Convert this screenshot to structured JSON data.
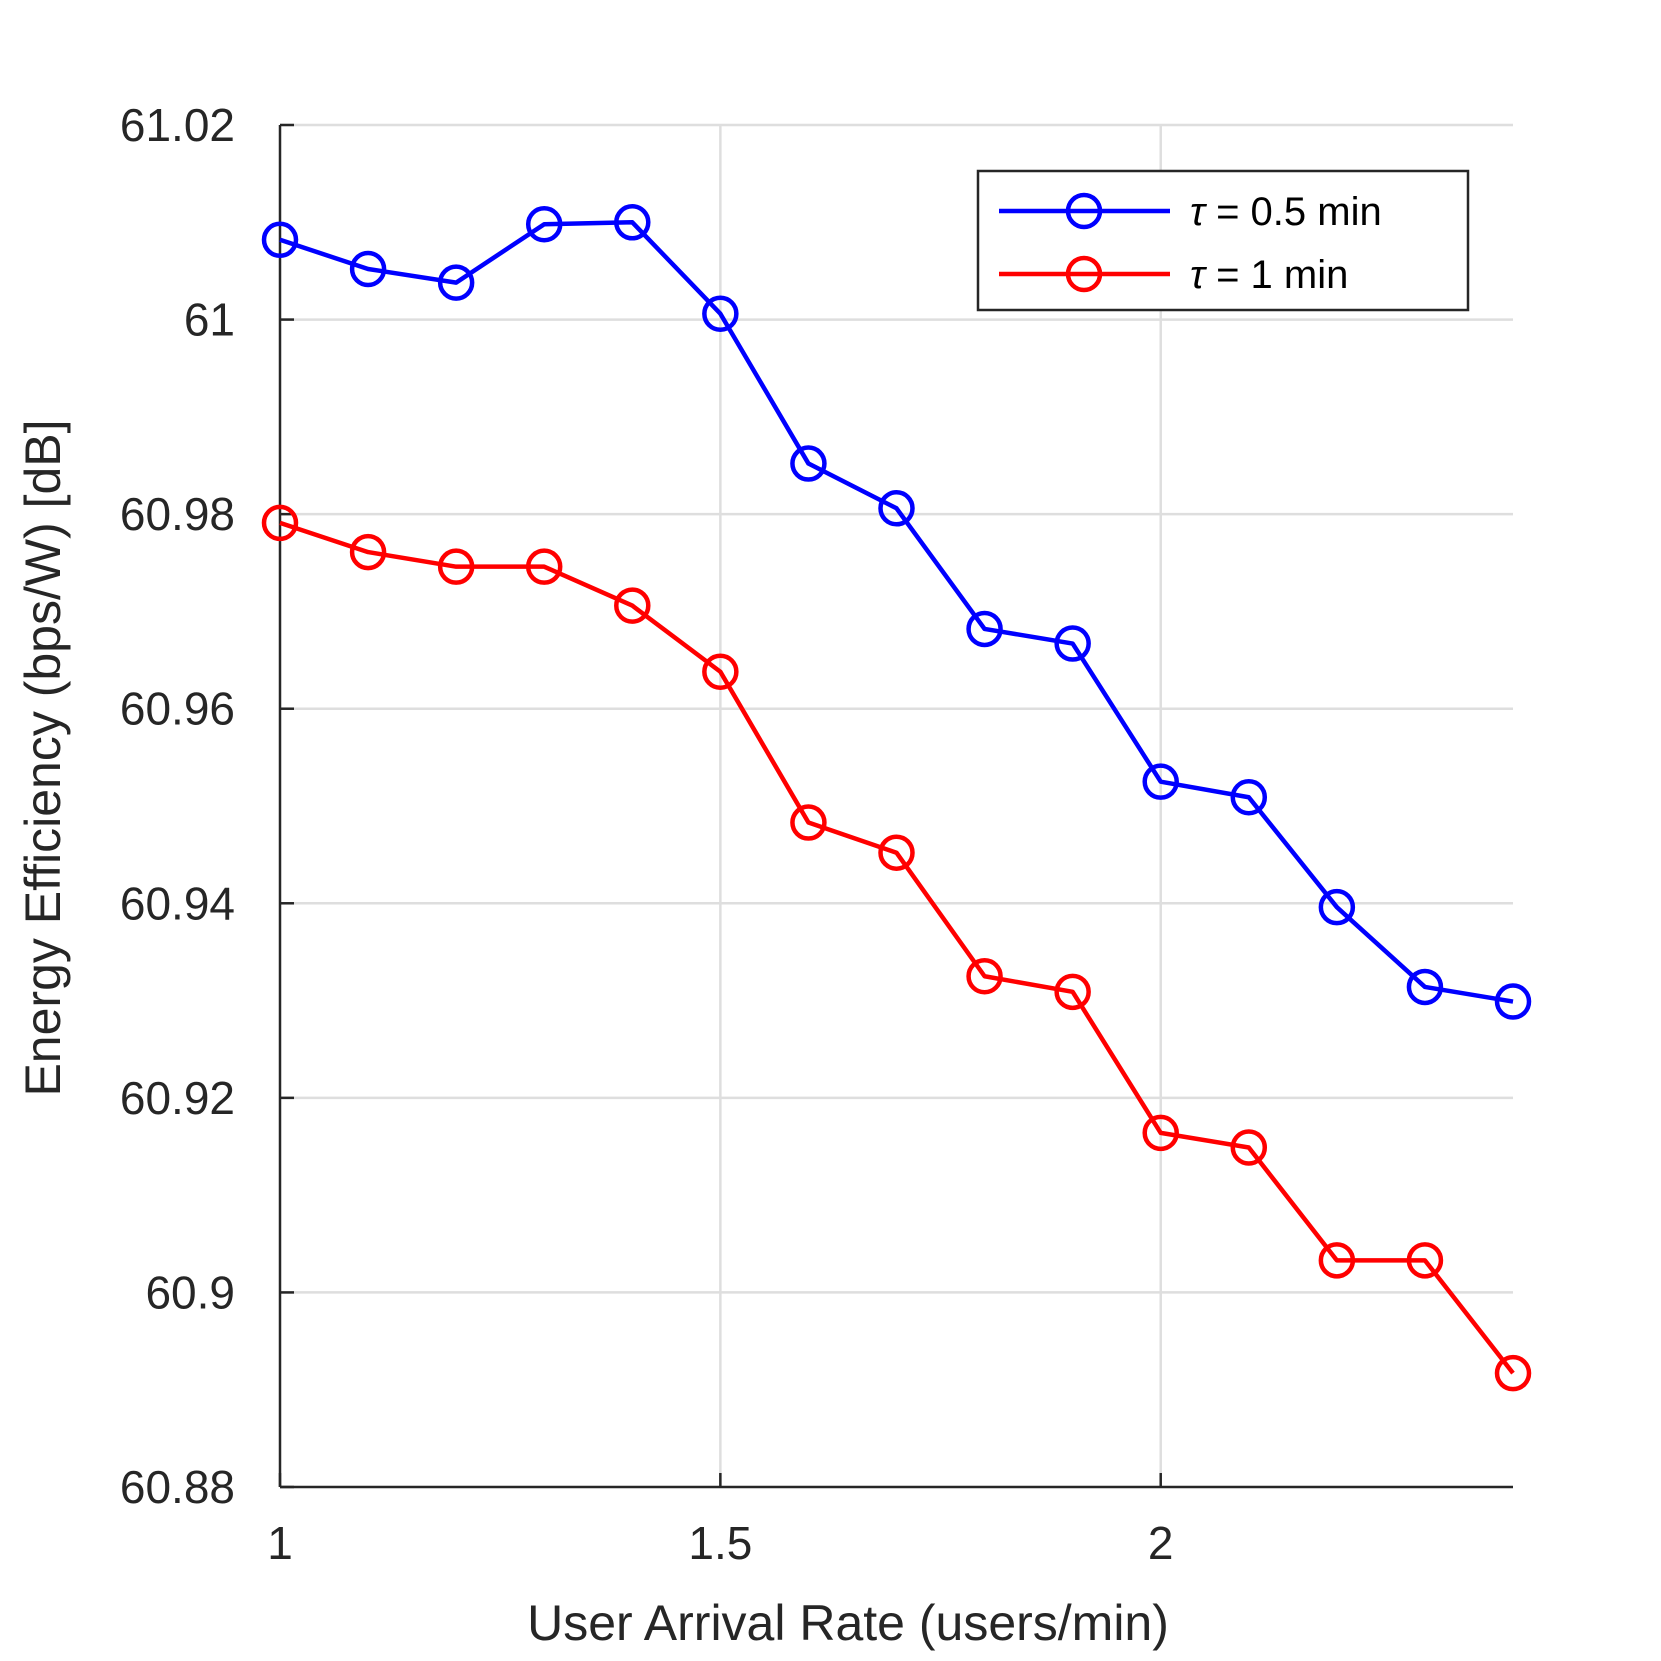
{
  "chart_data": {
    "type": "line",
    "xlabel": "User Arrival Rate (users/min)",
    "ylabel": "Energy Efficiency (bps/W) [dB]",
    "xlim": [
      1,
      2.4
    ],
    "ylim": [
      60.88,
      61.02
    ],
    "xticks": [
      1,
      1.5,
      2
    ],
    "xtick_labels": [
      "1",
      "1.5",
      "2"
    ],
    "yticks": [
      60.88,
      60.9,
      60.92,
      60.94,
      60.96,
      60.98,
      61,
      61.02
    ],
    "ytick_labels": [
      "60.88",
      "60.9",
      "60.92",
      "60.94",
      "60.96",
      "60.98",
      "61",
      "61.02"
    ],
    "grid": true,
    "legend_position": "top-right",
    "x": [
      1.0,
      1.1,
      1.2,
      1.3,
      1.4,
      1.5,
      1.6,
      1.7,
      1.8,
      1.9,
      2.0,
      2.1,
      2.2,
      2.3,
      2.4
    ],
    "series": [
      {
        "name": "τ = 0.5 min",
        "symbol": "τ",
        "label_rest": " = 0.5 min",
        "color": "#0000ff",
        "marker": "circle",
        "values": [
          61.0082,
          61.0052,
          61.0038,
          61.0098,
          61.01,
          61.0006,
          60.9852,
          60.9806,
          60.9682,
          60.9667,
          60.9525,
          60.9509,
          60.9396,
          60.9314,
          60.9299
        ]
      },
      {
        "name": "τ = 1 min",
        "symbol": "τ",
        "label_rest": " = 1 min",
        "color": "#ff0000",
        "marker": "circle",
        "values": [
          60.9791,
          60.9761,
          60.9746,
          60.9746,
          60.9706,
          60.9638,
          60.9483,
          60.9452,
          60.9325,
          60.9309,
          60.9164,
          60.9149,
          60.9033,
          60.9033,
          60.8917
        ]
      }
    ]
  }
}
